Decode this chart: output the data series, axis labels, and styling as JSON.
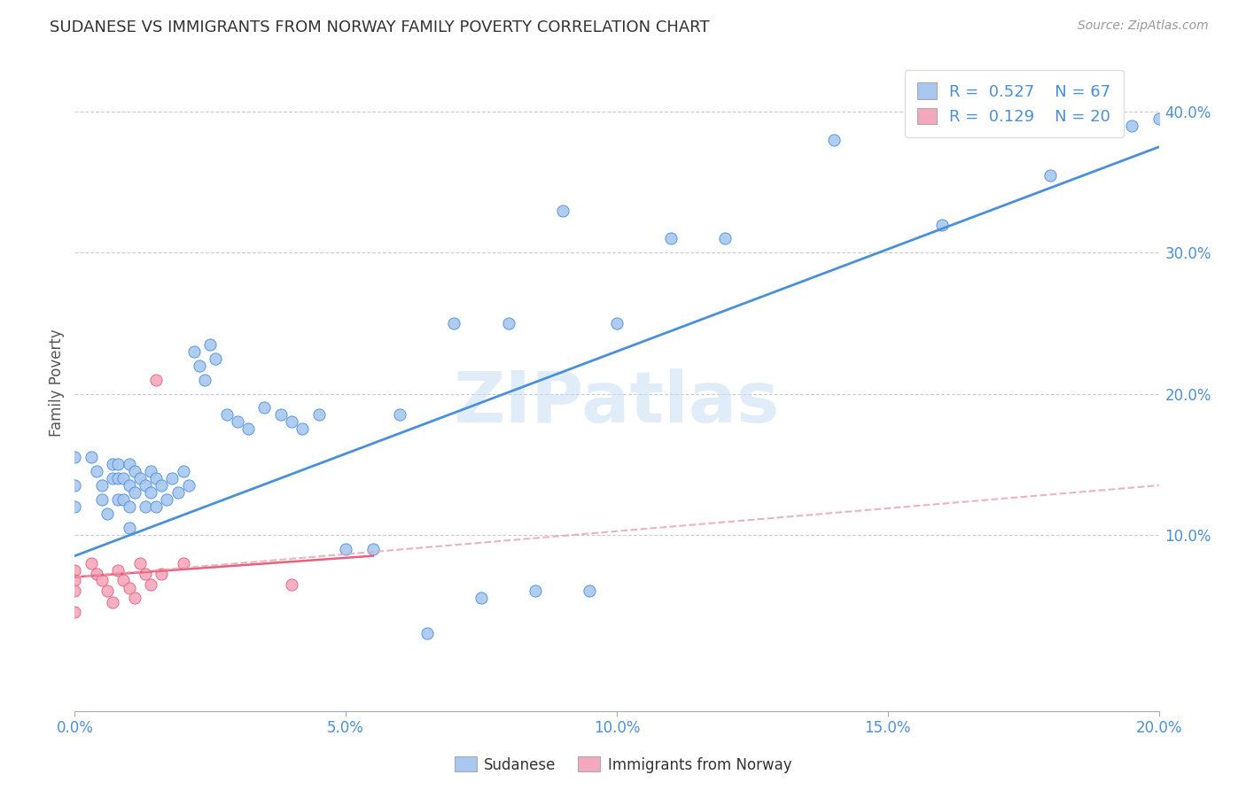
{
  "title": "SUDANESE VS IMMIGRANTS FROM NORWAY FAMILY POVERTY CORRELATION CHART",
  "source": "Source: ZipAtlas.com",
  "ylabel": "Family Poverty",
  "right_yticks": [
    "10.0%",
    "20.0%",
    "30.0%",
    "40.0%"
  ],
  "right_ytick_vals": [
    0.1,
    0.2,
    0.3,
    0.4
  ],
  "xlim": [
    0.0,
    0.2
  ],
  "ylim": [
    -0.025,
    0.44
  ],
  "blue_color": "#A8C8F0",
  "pink_color": "#F4A8BE",
  "blue_line_color": "#4A90D9",
  "pink_line_color": "#E8607A",
  "pink_dashed_color": "#E8A0B0",
  "legend_label1": "Sudanese",
  "legend_label2": "Immigrants from Norway",
  "watermark": "ZIPatlas",
  "sudanese_x": [
    0.0,
    0.0,
    0.0,
    0.003,
    0.004,
    0.005,
    0.005,
    0.006,
    0.007,
    0.007,
    0.008,
    0.008,
    0.008,
    0.009,
    0.009,
    0.01,
    0.01,
    0.01,
    0.01,
    0.011,
    0.011,
    0.012,
    0.013,
    0.013,
    0.014,
    0.014,
    0.015,
    0.015,
    0.016,
    0.017,
    0.018,
    0.019,
    0.02,
    0.021,
    0.022,
    0.023,
    0.024,
    0.025,
    0.026,
    0.028,
    0.03,
    0.032,
    0.035,
    0.038,
    0.04,
    0.042,
    0.045,
    0.05,
    0.055,
    0.06,
    0.065,
    0.07,
    0.075,
    0.08,
    0.085,
    0.09,
    0.095,
    0.1,
    0.11,
    0.12,
    0.14,
    0.16,
    0.18,
    0.19,
    0.195,
    0.2
  ],
  "sudanese_y": [
    0.155,
    0.135,
    0.12,
    0.155,
    0.145,
    0.135,
    0.125,
    0.115,
    0.15,
    0.14,
    0.15,
    0.14,
    0.125,
    0.14,
    0.125,
    0.15,
    0.135,
    0.12,
    0.105,
    0.145,
    0.13,
    0.14,
    0.135,
    0.12,
    0.145,
    0.13,
    0.14,
    0.12,
    0.135,
    0.125,
    0.14,
    0.13,
    0.145,
    0.135,
    0.23,
    0.22,
    0.21,
    0.235,
    0.225,
    0.185,
    0.18,
    0.175,
    0.19,
    0.185,
    0.18,
    0.175,
    0.185,
    0.09,
    0.09,
    0.185,
    0.03,
    0.25,
    0.055,
    0.25,
    0.06,
    0.33,
    0.06,
    0.25,
    0.31,
    0.31,
    0.38,
    0.32,
    0.355,
    0.41,
    0.39,
    0.395
  ],
  "norway_x": [
    0.0,
    0.0,
    0.0,
    0.0,
    0.003,
    0.004,
    0.005,
    0.006,
    0.007,
    0.008,
    0.009,
    0.01,
    0.011,
    0.012,
    0.013,
    0.014,
    0.015,
    0.016,
    0.02,
    0.04
  ],
  "norway_y": [
    0.075,
    0.068,
    0.06,
    0.045,
    0.08,
    0.072,
    0.068,
    0.06,
    0.052,
    0.075,
    0.068,
    0.062,
    0.055,
    0.08,
    0.072,
    0.065,
    0.21,
    0.072,
    0.08,
    0.065
  ],
  "blue_line_x": [
    0.0,
    0.2
  ],
  "blue_line_y": [
    0.085,
    0.375
  ],
  "pink_solid_line_x": [
    0.0,
    0.055
  ],
  "pink_solid_line_y": [
    0.07,
    0.085
  ],
  "pink_dashed_line_x": [
    0.0,
    0.2
  ],
  "pink_dashed_line_y": [
    0.07,
    0.135
  ],
  "xtick_vals": [
    0.0,
    0.05,
    0.1,
    0.15,
    0.2
  ],
  "xtick_labels": [
    "0.0%",
    "5.0%",
    "10.0%",
    "15.0%",
    "20.0%"
  ]
}
